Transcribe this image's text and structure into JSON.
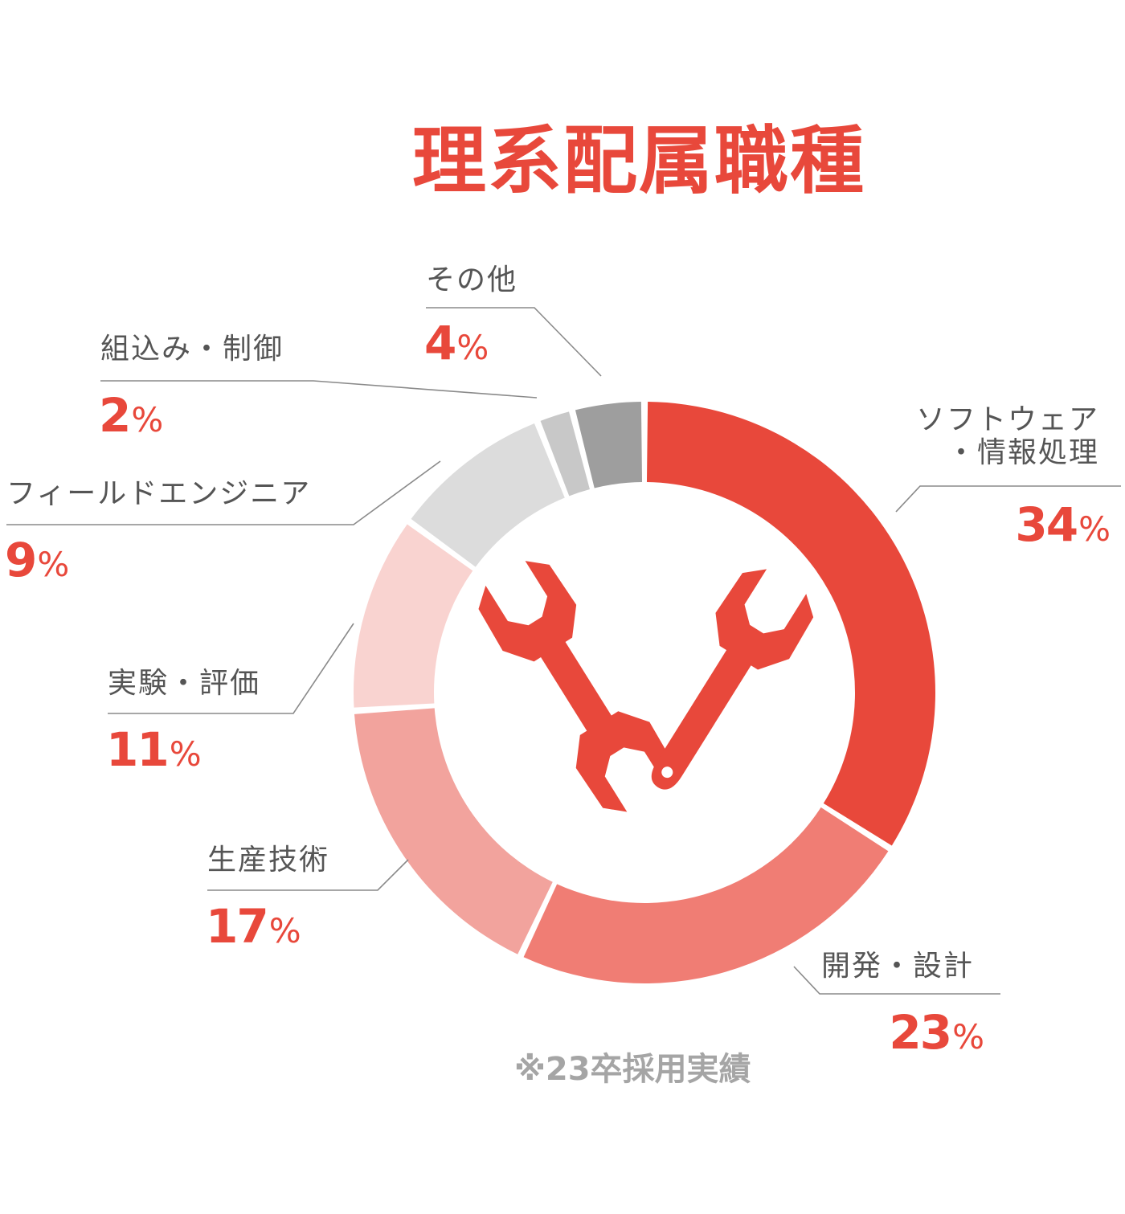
{
  "title": "理系配属職種",
  "note": "※23卒採用実績",
  "icon": "wrench-icon",
  "colors": {
    "accent": "#e8483b",
    "leader_line": "#8a8a8a",
    "note_text": "#a5a5a5"
  },
  "chart_data": {
    "type": "pie",
    "variant": "donut",
    "title": "理系配属職種",
    "categories": [
      "ソフトウェア・情報処理",
      "開発・設計",
      "生産技術",
      "実験・評価",
      "フィールドエンジニア",
      "組込み・制御",
      "その他"
    ],
    "values": [
      34,
      23,
      17,
      11,
      9,
      2,
      4
    ],
    "unit": "%",
    "colors": [
      "#e8483b",
      "#f07d74",
      "#f2a39d",
      "#f9d3d0",
      "#dcdcdc",
      "#c8c8c8",
      "#9e9e9e"
    ],
    "legend": "none",
    "labels": [
      {
        "name_lines": [
          "ソフトウェア",
          "・情報処理"
        ],
        "value": "34",
        "unit": "%"
      },
      {
        "name_lines": [
          "開発・設計"
        ],
        "value": "23",
        "unit": "%"
      },
      {
        "name_lines": [
          "生産技術"
        ],
        "value": "17",
        "unit": "%"
      },
      {
        "name_lines": [
          "実験・評価"
        ],
        "value": "11",
        "unit": "%"
      },
      {
        "name_lines": [
          "フィールドエンジニア"
        ],
        "value": "9",
        "unit": "%"
      },
      {
        "name_lines": [
          "組込み・制御"
        ],
        "value": "2",
        "unit": "%"
      },
      {
        "name_lines": [
          "その他"
        ],
        "value": "4",
        "unit": "%"
      }
    ]
  }
}
